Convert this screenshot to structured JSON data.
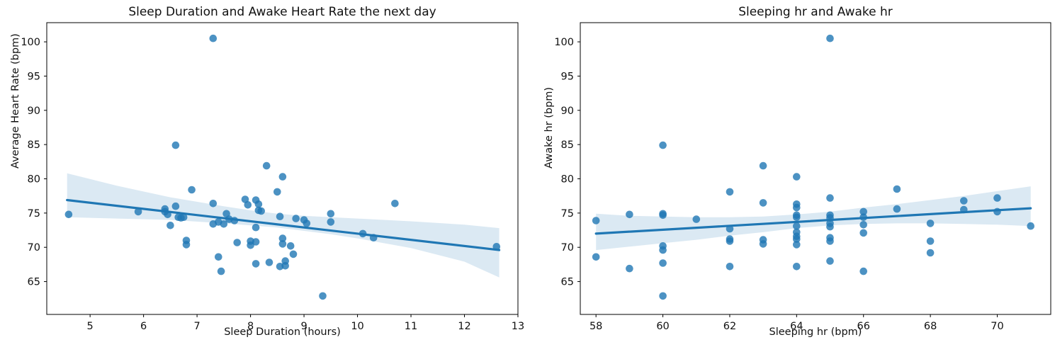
{
  "figure_background": "#ffffff",
  "colors": {
    "scatter_point": "rgba(31,119,180,0.8)",
    "regression_line": "#1f77b4",
    "confidence_band": "rgba(31,119,180,0.16)",
    "axes_spine": "#000000",
    "text": "#111111"
  },
  "chart_data": [
    {
      "type": "scatter",
      "title": "Sleep Duration and Awake Heart Rate the next day",
      "xlabel": "Sleep Duration (hours)",
      "ylabel": "Average Heart Rate (bpm)",
      "legend": "none",
      "grid": false,
      "xlim": [
        4.19,
        13.0
      ],
      "ylim": [
        60.2,
        102.8
      ],
      "xticks": [
        5,
        6,
        7,
        8,
        9,
        10,
        11,
        12,
        13
      ],
      "yticks": [
        65,
        70,
        75,
        80,
        85,
        90,
        95,
        100
      ],
      "points": [
        [
          4.6,
          74.8
        ],
        [
          5.9,
          75.2
        ],
        [
          6.4,
          75.6
        ],
        [
          6.4,
          75.2
        ],
        [
          6.45,
          74.8
        ],
        [
          6.5,
          73.2
        ],
        [
          6.6,
          84.9
        ],
        [
          6.6,
          76.0
        ],
        [
          6.65,
          74.4
        ],
        [
          6.7,
          74.3
        ],
        [
          6.75,
          74.4
        ],
        [
          6.8,
          71.0
        ],
        [
          6.8,
          70.4
        ],
        [
          6.9,
          78.4
        ],
        [
          7.3,
          100.5
        ],
        [
          7.3,
          76.4
        ],
        [
          7.3,
          73.4
        ],
        [
          7.4,
          73.7
        ],
        [
          7.5,
          73.4
        ],
        [
          7.4,
          68.6
        ],
        [
          7.45,
          66.5
        ],
        [
          7.55,
          74.9
        ],
        [
          7.6,
          74.1
        ],
        [
          7.7,
          73.9
        ],
        [
          7.75,
          70.7
        ],
        [
          7.9,
          77.0
        ],
        [
          7.95,
          76.2
        ],
        [
          8.0,
          70.9
        ],
        [
          8.0,
          70.3
        ],
        [
          8.1,
          76.9
        ],
        [
          8.15,
          76.3
        ],
        [
          8.15,
          75.4
        ],
        [
          8.1,
          72.9
        ],
        [
          8.1,
          70.8
        ],
        [
          8.1,
          67.6
        ],
        [
          8.2,
          75.3
        ],
        [
          8.3,
          81.9
        ],
        [
          8.35,
          67.8
        ],
        [
          8.5,
          78.1
        ],
        [
          8.6,
          80.3
        ],
        [
          8.55,
          74.5
        ],
        [
          8.6,
          71.3
        ],
        [
          8.6,
          70.5
        ],
        [
          8.65,
          68.0
        ],
        [
          8.65,
          67.3
        ],
        [
          8.55,
          67.2
        ],
        [
          8.75,
          70.2
        ],
        [
          8.8,
          69.0
        ],
        [
          8.85,
          74.2
        ],
        [
          9.0,
          74.0
        ],
        [
          9.05,
          73.5
        ],
        [
          9.35,
          62.9
        ],
        [
          9.5,
          74.9
        ],
        [
          9.5,
          73.7
        ],
        [
          10.1,
          72.0
        ],
        [
          10.3,
          71.4
        ],
        [
          10.7,
          76.4
        ],
        [
          12.6,
          70.1
        ]
      ],
      "regression_line": {
        "x": [
          4.57,
          12.65
        ],
        "y": [
          76.9,
          69.6
        ]
      },
      "confidence_band": [
        [
          4.57,
          80.8,
          74.4
        ],
        [
          5.5,
          79.0,
          74.2
        ],
        [
          6.5,
          77.3,
          74.0
        ],
        [
          7.5,
          76.0,
          73.5
        ],
        [
          8.0,
          75.4,
          73.2
        ],
        [
          8.5,
          74.9,
          72.9
        ],
        [
          9.0,
          74.6,
          72.4
        ],
        [
          9.5,
          74.4,
          71.9
        ],
        [
          10.0,
          74.2,
          71.3
        ],
        [
          11.0,
          73.8,
          69.9
        ],
        [
          12.0,
          73.3,
          67.9
        ],
        [
          12.65,
          72.8,
          65.6
        ]
      ]
    },
    {
      "type": "scatter",
      "title": "Sleeping hr and Awake hr",
      "xlabel": "Sleeping hr (bpm)",
      "ylabel": "Awake hr (bpm)",
      "legend": "none",
      "grid": false,
      "xlim": [
        57.53,
        71.6
      ],
      "ylim": [
        60.2,
        102.8
      ],
      "xticks": [
        58,
        60,
        62,
        64,
        66,
        68,
        70
      ],
      "yticks": [
        65,
        70,
        75,
        80,
        85,
        90,
        95,
        100
      ],
      "points": [
        [
          58,
          73.9
        ],
        [
          58,
          68.6
        ],
        [
          59,
          74.8
        ],
        [
          59,
          66.9
        ],
        [
          60,
          84.9
        ],
        [
          60,
          74.9
        ],
        [
          60,
          74.7
        ],
        [
          60,
          70.2
        ],
        [
          60,
          69.6
        ],
        [
          60,
          67.7
        ],
        [
          60,
          62.9
        ],
        [
          61,
          74.1
        ],
        [
          62,
          78.1
        ],
        [
          62,
          72.7
        ],
        [
          62,
          71.2
        ],
        [
          62,
          70.9
        ],
        [
          62,
          67.2
        ],
        [
          63,
          81.9
        ],
        [
          63,
          76.5
        ],
        [
          63,
          71.1
        ],
        [
          63,
          70.5
        ],
        [
          64,
          80.3
        ],
        [
          64,
          76.3
        ],
        [
          64,
          75.8
        ],
        [
          64,
          74.7
        ],
        [
          64,
          74.4
        ],
        [
          64,
          73.1
        ],
        [
          64,
          72.2
        ],
        [
          64,
          71.6
        ],
        [
          64,
          71.2
        ],
        [
          64,
          70.4
        ],
        [
          64,
          67.2
        ],
        [
          65,
          100.5
        ],
        [
          65,
          77.2
        ],
        [
          65,
          74.7
        ],
        [
          65,
          74.3
        ],
        [
          65,
          73.5
        ],
        [
          65,
          73.0
        ],
        [
          65,
          71.4
        ],
        [
          65,
          70.9
        ],
        [
          65,
          68.0
        ],
        [
          66,
          75.2
        ],
        [
          66,
          74.4
        ],
        [
          66,
          73.3
        ],
        [
          66,
          72.1
        ],
        [
          66,
          66.5
        ],
        [
          67,
          78.5
        ],
        [
          67,
          75.6
        ],
        [
          68,
          73.5
        ],
        [
          68,
          70.9
        ],
        [
          68,
          69.2
        ],
        [
          69,
          76.8
        ],
        [
          69,
          75.5
        ],
        [
          70,
          77.2
        ],
        [
          70,
          75.2
        ],
        [
          71,
          73.1
        ]
      ],
      "regression_line": {
        "x": [
          58,
          71
        ],
        "y": [
          72.0,
          75.7
        ]
      },
      "confidence_band": [
        [
          58,
          74.9,
          69.6
        ],
        [
          59,
          74.6,
          70.1
        ],
        [
          60,
          74.5,
          70.6
        ],
        [
          61,
          74.4,
          71.1
        ],
        [
          62,
          74.4,
          71.7
        ],
        [
          63,
          74.5,
          72.2
        ],
        [
          64,
          74.8,
          72.8
        ],
        [
          64.5,
          75.0,
          73.0
        ],
        [
          65,
          75.2,
          73.2
        ],
        [
          66,
          75.8,
          73.4
        ],
        [
          67,
          76.3,
          73.5
        ],
        [
          68,
          76.9,
          73.5
        ],
        [
          69,
          77.5,
          73.4
        ],
        [
          70,
          78.2,
          73.3
        ],
        [
          71,
          78.9,
          73.1
        ]
      ]
    }
  ]
}
